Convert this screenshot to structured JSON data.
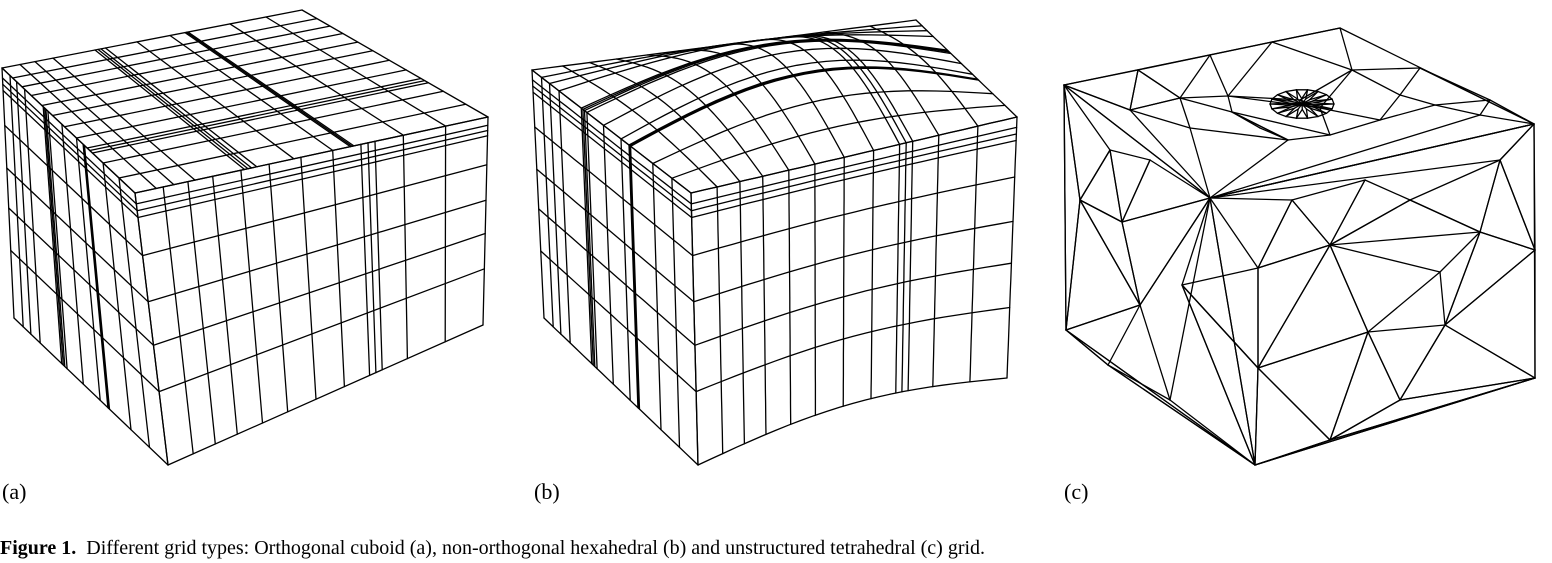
{
  "panels": [
    {
      "label": "(a)"
    },
    {
      "label": "(b)"
    },
    {
      "label": "(c)"
    }
  ],
  "caption": {
    "number": "Figure 1.",
    "text": "Different grid types: Orthogonal cuboid (a), non-orthogonal hexahedral (b) and unstructured tetrahedral (c) grid."
  }
}
